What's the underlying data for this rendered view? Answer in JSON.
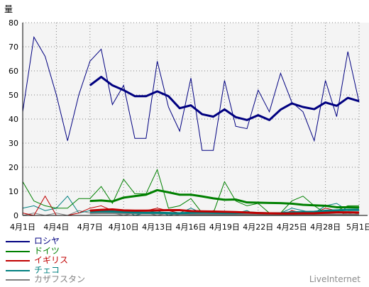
{
  "chart_data": {
    "type": "line",
    "ylabel": "量",
    "ylim": [
      0,
      80
    ],
    "yticks": [
      0,
      10,
      20,
      30,
      40,
      50,
      60,
      70,
      80
    ],
    "xticks": [
      "4月1日",
      "4月4日",
      "4月7日",
      "4月10日",
      "4月13日",
      "4月16日",
      "4月19日",
      "4月22日",
      "4月25日",
      "4月28日",
      "5月1日"
    ],
    "grid": true,
    "legend_position": "bottom-left",
    "series": [
      {
        "name": "ロシヤ",
        "color": "#000080",
        "values": [
          43,
          74,
          66,
          50,
          31,
          50,
          64,
          69,
          46,
          54,
          32,
          32,
          64,
          45,
          35,
          57,
          27,
          27,
          56,
          37,
          36,
          52,
          43,
          59,
          47,
          43,
          31,
          56,
          41,
          68,
          47
        ],
        "average": [
          null,
          null,
          null,
          null,
          null,
          null,
          54,
          57.5,
          54,
          52,
          49.5,
          49.5,
          51.5,
          49.5,
          44.5,
          45.7,
          42,
          41,
          44,
          40.8,
          39.6,
          41.6,
          39.6,
          43.9,
          46.5,
          45,
          44.1,
          46.9,
          45.5,
          48.8,
          47.4
        ]
      },
      {
        "name": "ドイツ",
        "color": "#008000",
        "values": [
          14,
          6,
          4,
          3,
          3,
          7,
          7,
          12,
          5,
          15,
          9,
          9,
          19,
          3,
          4,
          7,
          1,
          1,
          14,
          6,
          4,
          5,
          1,
          1,
          6,
          8,
          4,
          1,
          2,
          4,
          4
        ],
        "average": [
          null,
          null,
          null,
          null,
          null,
          null,
          6,
          6.2,
          5.8,
          7.4,
          8,
          8.6,
          10.5,
          9.6,
          8.6,
          8.6,
          7.9,
          7.1,
          6.5,
          6.6,
          5.4,
          5.3,
          5.2,
          5.1,
          4.9,
          4.4,
          4.2,
          4,
          3.4,
          3.4,
          3.3
        ]
      },
      {
        "name": "イギリス",
        "color": "#c00000",
        "values": [
          1,
          0,
          8,
          0,
          0,
          1,
          3,
          4,
          2,
          1,
          2,
          2,
          3,
          2,
          1,
          1,
          0,
          2,
          1,
          0,
          0,
          1,
          0,
          0,
          2,
          1,
          1,
          3,
          2,
          0,
          1
        ],
        "average": [
          null,
          null,
          null,
          null,
          null,
          null,
          2,
          2.3,
          2.5,
          2.1,
          2,
          2,
          2.1,
          2.2,
          2.2,
          1.8,
          1.7,
          1.6,
          1.5,
          1.4,
          1.2,
          1,
          0.9,
          0.8,
          0.8,
          0.9,
          0.9,
          1.1,
          1.3,
          1.3,
          1.2
        ]
      },
      {
        "name": "チェコ",
        "color": "#008080",
        "values": [
          3,
          4,
          2,
          3,
          8,
          1,
          2,
          1,
          1,
          2,
          0,
          1,
          2,
          0,
          1,
          3,
          1,
          0,
          1,
          1,
          2,
          0,
          1,
          1,
          3,
          2,
          1,
          4,
          5,
          2,
          2
        ],
        "average": [
          null,
          null,
          null,
          null,
          null,
          null,
          1.5,
          1.7,
          1.6,
          1.4,
          1.2,
          1.1,
          1.1,
          1,
          0.9,
          1.1,
          1.2,
          1.1,
          1,
          1,
          1.2,
          1,
          0.9,
          0.9,
          1.3,
          1.4,
          1.5,
          1.9,
          2.1,
          2.3,
          2.4
        ]
      },
      {
        "name": "カザフスタン",
        "color": "#808080",
        "values": [
          0,
          1,
          0,
          1,
          0,
          2,
          1,
          2,
          1,
          0,
          1,
          1,
          0,
          1,
          0,
          0,
          1,
          0,
          0,
          1,
          0,
          0,
          1,
          0,
          0,
          0,
          1,
          0,
          0,
          1,
          0
        ],
        "average": [
          null,
          null,
          null,
          null,
          null,
          null,
          0.9,
          1,
          1,
          0.9,
          0.9,
          0.9,
          0.9,
          0.8,
          0.7,
          0.6,
          0.6,
          0.5,
          0.4,
          0.4,
          0.4,
          0.4,
          0.4,
          0.3,
          0.3,
          0.3,
          0.4,
          0.3,
          0.3,
          0.3,
          0.3
        ]
      }
    ]
  },
  "brand": "LiveInternet"
}
